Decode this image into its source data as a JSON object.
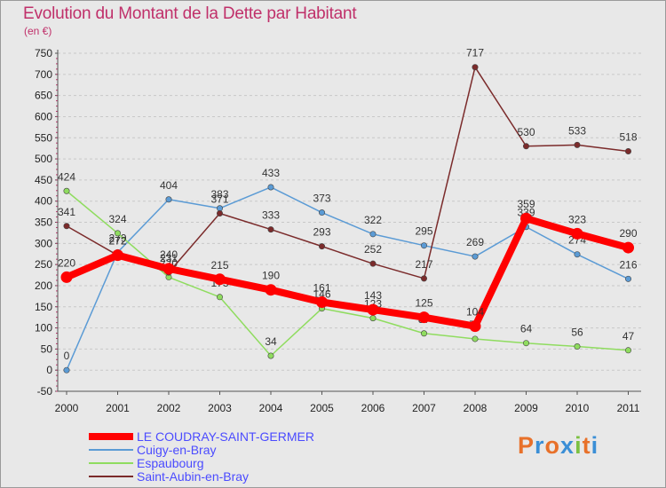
{
  "title": "Evolution du Montant de la Dette par Habitant",
  "unit_label": "(en €)",
  "brand": {
    "letters": [
      "P",
      "r",
      "o",
      "x",
      "i",
      "t",
      "i"
    ],
    "colors": [
      "#e8712a",
      "#3b8fd6",
      "#e8712a",
      "#3b8fd6",
      "#7cc142",
      "#e8712a",
      "#3b8fd6"
    ]
  },
  "chart_data": {
    "type": "line",
    "title": "Evolution du Montant de la Dette par Habitant",
    "ylabel": "(en €)",
    "xlabel": "",
    "ylim": [
      -50,
      750
    ],
    "yticks": [
      -50,
      0,
      50,
      100,
      150,
      200,
      250,
      300,
      350,
      400,
      450,
      500,
      550,
      600,
      650,
      700,
      750
    ],
    "grid": "horizontal dashed",
    "legend_position": "bottom-left",
    "x": [
      "2000",
      "2001",
      "2002",
      "2003",
      "2004",
      "2005",
      "2006",
      "2007",
      "2008",
      "2009",
      "2010",
      "2011"
    ],
    "series": [
      {
        "name": "LE COUDRAY-SAINT-GERMER",
        "color": "#ff0000",
        "emphasis": true,
        "values": [
          220,
          272,
          240,
          215,
          190,
          161,
          143,
          125,
          104,
          359,
          323,
          290
        ]
      },
      {
        "name": "Cuigy-en-Bray",
        "color": "#5b9bd5",
        "values": [
          0,
          279,
          404,
          383,
          433,
          373,
          322,
          295,
          269,
          339,
          274,
          216
        ]
      },
      {
        "name": "Espaubourg",
        "color": "#8fdc5f",
        "values": [
          424,
          324,
          220,
          173,
          34,
          146,
          123,
          87,
          74,
          64,
          56,
          47
        ]
      },
      {
        "name": "Saint-Aubin-en-Bray",
        "color": "#7b2b2b",
        "values": [
          341,
          272,
          231,
          371,
          333,
          293,
          252,
          217,
          717,
          530,
          533,
          518
        ]
      }
    ]
  }
}
